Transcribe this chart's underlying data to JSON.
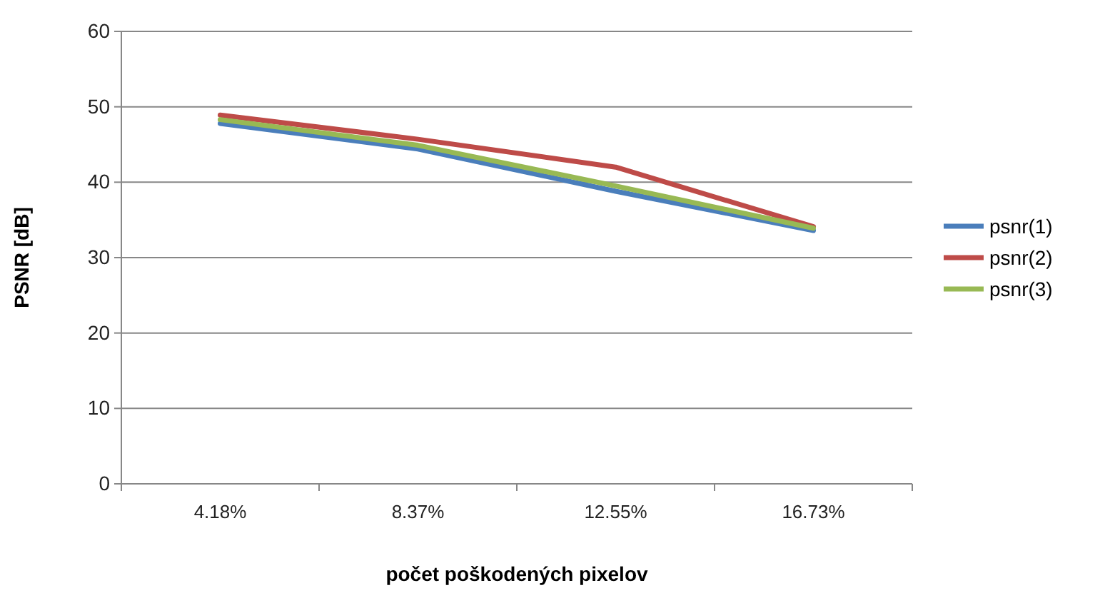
{
  "chart_data": {
    "type": "line",
    "xlabel": "počet poškodených pixelov",
    "ylabel": "PSNR [dB]",
    "categories": [
      "4.18%",
      "8.37%",
      "12.55%",
      "16.73%"
    ],
    "series": [
      {
        "name": "psnr(1)",
        "color": "#4a7ebb",
        "values": [
          47.8,
          44.4,
          38.8,
          33.6
        ]
      },
      {
        "name": "psnr(2)",
        "color": "#be4b48",
        "values": [
          48.9,
          45.7,
          42.0,
          34.1
        ]
      },
      {
        "name": "psnr(3)",
        "color": "#98b954",
        "values": [
          48.3,
          44.9,
          39.5,
          33.9
        ]
      }
    ],
    "ylim": [
      0,
      60
    ],
    "yticks": [
      0,
      10,
      20,
      30,
      40,
      50,
      60
    ],
    "grid": "y",
    "legend": "right",
    "marker": "none"
  }
}
